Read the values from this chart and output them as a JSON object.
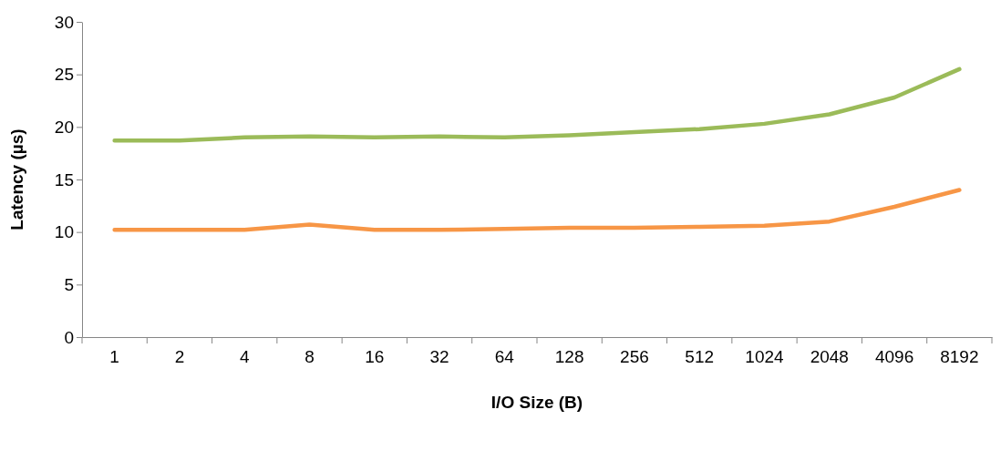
{
  "chart_data": {
    "type": "line",
    "xlabel": "I/O Size (B)",
    "ylabel": "Latency (µs)",
    "categories": [
      "1",
      "2",
      "4",
      "8",
      "16",
      "32",
      "64",
      "128",
      "256",
      "512",
      "1024",
      "2048",
      "4096",
      "8192"
    ],
    "series": [
      {
        "color": "#9bbb59",
        "values": [
          18.7,
          18.7,
          19.0,
          19.1,
          19.0,
          19.1,
          19.0,
          19.2,
          19.5,
          19.8,
          20.3,
          21.2,
          22.8,
          25.5
        ]
      },
      {
        "color": "#f79646",
        "values": [
          10.2,
          10.2,
          10.2,
          10.7,
          10.2,
          10.2,
          10.3,
          10.4,
          10.4,
          10.5,
          10.6,
          11.0,
          12.4,
          14.0
        ]
      }
    ],
    "ylim": [
      0,
      30
    ],
    "yticks": [
      0,
      5,
      10,
      15,
      20,
      25,
      30
    ],
    "grid": false,
    "marker": "none",
    "line_style": "solid"
  }
}
